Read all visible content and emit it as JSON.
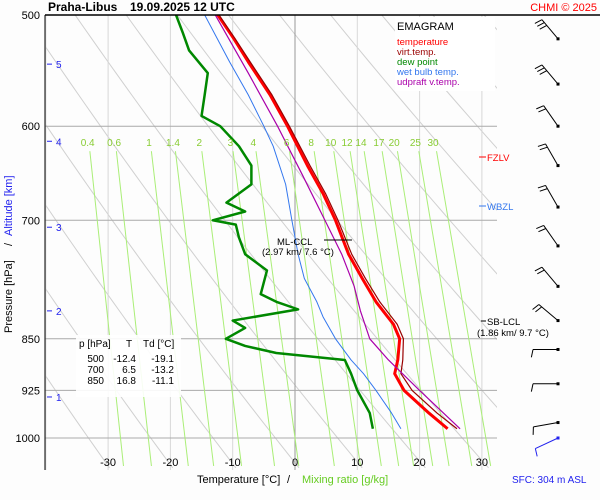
{
  "header": {
    "station": "Praha-Libus",
    "datetime": "19.09.2025 12 UTC",
    "copyright": "CHMI © 2025"
  },
  "legend": {
    "title": "EMAGRAM",
    "items": [
      {
        "label": "temperature",
        "color": "#ff0000"
      },
      {
        "label": "virt.temp.",
        "color": "#990000"
      },
      {
        "label": "dew point",
        "color": "#008800"
      },
      {
        "label": "wet bulb temp.",
        "color": "#3377ee"
      },
      {
        "label": "udpraft v.temp.",
        "color": "#aa00aa"
      }
    ]
  },
  "table": {
    "headers": [
      "p [hPa]",
      "T",
      "Td [°C]"
    ],
    "rows": [
      [
        "500",
        "-12.4",
        "-19.1"
      ],
      [
        "700",
        "6.5",
        "-13.2"
      ],
      [
        "850",
        "16.8",
        "-11.1"
      ]
    ]
  },
  "annotations": {
    "ml_ccl": {
      "label": "ML-CCL",
      "detail": "(2.97 km/ 7.6 °C)"
    },
    "sb_lcl": {
      "label": "SB-LCL",
      "detail": "(1.86 km/ 9.7 °C)"
    },
    "fzlv": "FZLV",
    "wbzl": "WBZL"
  },
  "footer": {
    "sfc": "SFC: 304 m ASL"
  },
  "chart_data": {
    "type": "line",
    "title": "EMAGRAM",
    "xlabel": "Temperature [°C]",
    "xlabel2": "Mixing ratio [g/kg]",
    "ylabel": "Pressure [hPa]",
    "ylabel2": "Altitude [km]",
    "xlim": [
      -38,
      35
    ],
    "ylim": [
      1050,
      500
    ],
    "y_scale": "log",
    "x_ticks": [
      -30,
      -20,
      -10,
      0,
      10,
      20,
      30
    ],
    "y_ticks": [
      500,
      600,
      700,
      850,
      925,
      1000
    ],
    "altitude_ticks": [
      {
        "km": 1,
        "p": 935
      },
      {
        "km": 2,
        "p": 812
      },
      {
        "km": 3,
        "p": 708
      },
      {
        "km": 4,
        "p": 615
      },
      {
        "km": 5,
        "p": 542
      }
    ],
    "mixing_ratio_labels": [
      "0.4",
      "0.6",
      "1",
      "1.4",
      "2",
      "3",
      "4",
      "6",
      "8",
      "10",
      "12",
      "14",
      "17",
      "20",
      "25",
      "30"
    ],
    "grid": true,
    "series": [
      {
        "name": "temperature",
        "color": "#ff0000",
        "points": [
          [
            985,
            24.5
          ],
          [
            960,
            21.5
          ],
          [
            925,
            17.5
          ],
          [
            900,
            16.0
          ],
          [
            880,
            16.5
          ],
          [
            850,
            16.8
          ],
          [
            830,
            15.8
          ],
          [
            800,
            13.0
          ],
          [
            770,
            10.8
          ],
          [
            740,
            8.6
          ],
          [
            700,
            6.5
          ],
          [
            670,
            4.5
          ],
          [
            640,
            2.0
          ],
          [
            600,
            -1.2
          ],
          [
            570,
            -4.0
          ],
          [
            540,
            -7.5
          ],
          [
            520,
            -9.8
          ],
          [
            500,
            -12.4
          ]
        ]
      },
      {
        "name": "virt.temp.",
        "color": "#990000",
        "points": [
          [
            985,
            26.0
          ],
          [
            960,
            22.8
          ],
          [
            925,
            18.8
          ],
          [
            900,
            17.0
          ],
          [
            880,
            17.3
          ],
          [
            850,
            17.4
          ],
          [
            830,
            16.4
          ],
          [
            800,
            13.6
          ],
          [
            770,
            11.3
          ],
          [
            740,
            9.1
          ],
          [
            700,
            6.9
          ],
          [
            670,
            4.9
          ],
          [
            640,
            2.4
          ],
          [
            600,
            -0.9
          ],
          [
            570,
            -3.7
          ],
          [
            540,
            -7.2
          ],
          [
            520,
            -9.6
          ],
          [
            500,
            -12.2
          ]
        ]
      },
      {
        "name": "dew point",
        "color": "#008800",
        "points": [
          [
            985,
            12.5
          ],
          [
            960,
            12.0
          ],
          [
            925,
            10.0
          ],
          [
            900,
            9.0
          ],
          [
            880,
            8.0
          ],
          [
            870,
            -3.0
          ],
          [
            860,
            -8.0
          ],
          [
            850,
            -11.1
          ],
          [
            835,
            -8.0
          ],
          [
            825,
            -10.0
          ],
          [
            810,
            0.5
          ],
          [
            800,
            -3.0
          ],
          [
            790,
            -5.5
          ],
          [
            760,
            -4.5
          ],
          [
            740,
            -8.0
          ],
          [
            720,
            -9.0
          ],
          [
            705,
            -9.5
          ],
          [
            700,
            -13.2
          ],
          [
            690,
            -8.0
          ],
          [
            680,
            -11.0
          ],
          [
            660,
            -7.0
          ],
          [
            640,
            -7.0
          ],
          [
            620,
            -9.0
          ],
          [
            600,
            -12.0
          ],
          [
            590,
            -15.0
          ],
          [
            570,
            -14.5
          ],
          [
            550,
            -14.0
          ],
          [
            530,
            -17.0
          ],
          [
            515,
            -18.0
          ],
          [
            500,
            -19.1
          ]
        ]
      },
      {
        "name": "wet bulb temp.",
        "color": "#3377ee",
        "points": [
          [
            985,
            17.0
          ],
          [
            960,
            15.5
          ],
          [
            925,
            13.0
          ],
          [
            900,
            11.0
          ],
          [
            880,
            9.0
          ],
          [
            850,
            6.5
          ],
          [
            820,
            4.5
          ],
          [
            800,
            3.5
          ],
          [
            770,
            1.5
          ],
          [
            740,
            0.5
          ],
          [
            700,
            -0.5
          ],
          [
            660,
            -1.5
          ],
          [
            620,
            -3.5
          ],
          [
            600,
            -5.0
          ],
          [
            570,
            -7.5
          ],
          [
            540,
            -10.5
          ],
          [
            500,
            -14.5
          ]
        ]
      },
      {
        "name": "udpraft v.temp.",
        "color": "#aa00aa",
        "points": [
          [
            985,
            26.5
          ],
          [
            925,
            20.0
          ],
          [
            880,
            15.0
          ],
          [
            850,
            12.0
          ],
          [
            812,
            10.5
          ],
          [
            780,
            9.5
          ],
          [
            740,
            7.5
          ],
          [
            700,
            4.8
          ],
          [
            650,
            1.2
          ],
          [
            600,
            -2.8
          ],
          [
            550,
            -7.5
          ],
          [
            500,
            -12.8
          ]
        ]
      }
    ],
    "wind_barbs_p": [
      520,
      560,
      600,
      640,
      685,
      730,
      780,
      825,
      865,
      915,
      975,
      1000
    ]
  }
}
